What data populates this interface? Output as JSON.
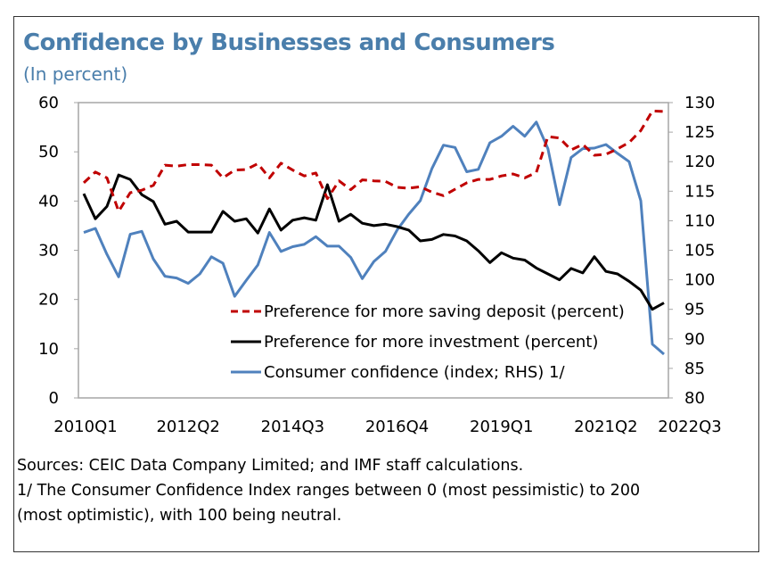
{
  "title": "Confidence by Businesses and Consumers",
  "subtitle": "(In percent)",
  "footnotes": [
    "Sources: CEIC Data Company Limited; and IMF staff calculations.",
    "1/ The Consumer Confidence Index ranges between 0 (most pessimistic) to 200",
    "(most optimistic), with 100 being neutral."
  ],
  "colors": {
    "saving": "#c00000",
    "investment": "#000000",
    "consumer": "#4f81bd",
    "title": "#4a7eab"
  },
  "chart_data": {
    "type": "line",
    "title": "Confidence by Businesses and Consumers",
    "x_start": "2010Q1",
    "x_end": "2022Q3",
    "x_tick_labels": [
      {
        "label": "2010Q1",
        "index": 0
      },
      {
        "label": "2012Q2",
        "index": 9
      },
      {
        "label": "2014Q3",
        "index": 18
      },
      {
        "label": "2016Q4",
        "index": 27
      },
      {
        "label": "2019Q1",
        "index": 36
      },
      {
        "label": "2021Q2",
        "index": 45
      },
      {
        "label": "2022Q3",
        "index": 50
      }
    ],
    "y_left": {
      "range": [
        0,
        60
      ],
      "ticks": [
        "0",
        "10",
        "20",
        "30",
        "40",
        "50",
        "60"
      ]
    },
    "y_right": {
      "range": [
        80,
        130
      ],
      "ticks": [
        "80",
        "85",
        "90",
        "95",
        "100",
        "105",
        "110",
        "115",
        "120",
        "125",
        "130"
      ]
    },
    "grid": false,
    "legend_position": "bottom-center-inside",
    "series": [
      {
        "name": "Preference for more saving deposit (percent)",
        "axis": "left",
        "style": "dashed",
        "color": "#c00000",
        "values": [
          43.7,
          45.9,
          44.7,
          37.9,
          41.7,
          42.2,
          43.2,
          47.3,
          47.1,
          47.4,
          47.4,
          47.3,
          44.7,
          46.3,
          46.4,
          47.6,
          44.7,
          47.7,
          46.3,
          45.1,
          45.7,
          40.5,
          44.1,
          42.3,
          44.3,
          44.1,
          44.0,
          42.8,
          42.6,
          42.9,
          41.8,
          41.1,
          42.4,
          43.7,
          44.4,
          44.4,
          45.1,
          45.5,
          44.7,
          45.8,
          53.1,
          52.8,
          50.4,
          51.5,
          49.3,
          49.5,
          50.6,
          51.9,
          54.3,
          58.3,
          58.2
        ]
      },
      {
        "name": "Preference for more investment (percent)",
        "axis": "left",
        "style": "solid",
        "color": "#000000",
        "values": [
          41.5,
          36.4,
          38.9,
          45.3,
          44.4,
          41.3,
          39.9,
          35.3,
          35.9,
          33.7,
          33.7,
          33.7,
          37.9,
          35.9,
          36.4,
          33.5,
          38.4,
          34.1,
          36.1,
          36.6,
          36.1,
          43.3,
          35.9,
          37.3,
          35.5,
          35.0,
          35.3,
          34.8,
          34.1,
          31.9,
          32.2,
          33.2,
          32.9,
          31.9,
          29.9,
          27.5,
          29.5,
          28.4,
          28.0,
          26.4,
          25.2,
          24.0,
          26.3,
          25.4,
          28.7,
          25.7,
          25.2,
          23.7,
          21.9,
          18.0,
          19.3
        ]
      },
      {
        "name": "Consumer confidence (index; RHS) 1/",
        "axis": "right",
        "style": "solid",
        "color": "#4f81bd",
        "values": [
          108.0,
          108.7,
          104.3,
          100.5,
          107.7,
          108.2,
          103.5,
          100.6,
          100.3,
          99.4,
          101.0,
          103.9,
          102.8,
          97.2,
          99.9,
          102.5,
          108.0,
          104.8,
          105.6,
          106.0,
          107.3,
          105.7,
          105.7,
          103.8,
          100.2,
          103.1,
          104.8,
          108.4,
          111.1,
          113.4,
          118.8,
          122.8,
          122.4,
          118.3,
          118.7,
          123.2,
          124.3,
          126.0,
          124.3,
          126.7,
          122.2,
          112.7,
          120.7,
          122.2,
          122.3,
          122.9,
          121.4,
          120.0,
          113.4,
          89.1,
          87.4
        ]
      }
    ]
  }
}
